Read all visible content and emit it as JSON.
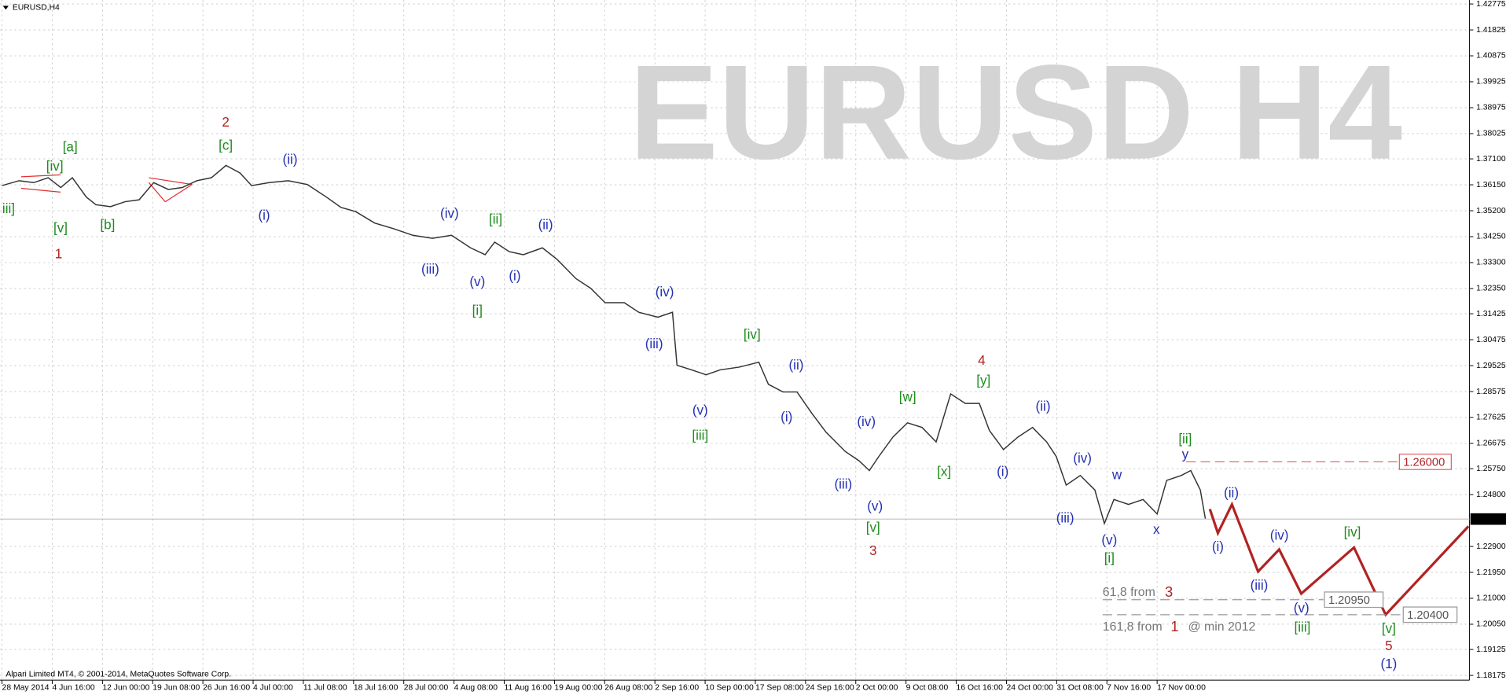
{
  "chart_data": {
    "type": "line",
    "title": "EURUSD,H4",
    "watermark": "EURUSD H4",
    "footer": "Alpari Limited MT4, © 2001-2014, MetaQuotes Software Corp.",
    "grid": true,
    "xlim": [
      -0.04,
      29.22
    ],
    "ylim": [
      1.18,
      1.4292
    ],
    "xticks": [
      {
        "value": 0,
        "label": "28 May 2014"
      },
      {
        "value": 1,
        "label": "4 Jun 16:00"
      },
      {
        "value": 2,
        "label": "12 Jun 00:00"
      },
      {
        "value": 3,
        "label": "19 Jun 08:00"
      },
      {
        "value": 4,
        "label": "26 Jun 16:00"
      },
      {
        "value": 5,
        "label": "4 Jul 00:00"
      },
      {
        "value": 6,
        "label": "11 Jul 08:00"
      },
      {
        "value": 7,
        "label": "18 Jul 16:00"
      },
      {
        "value": 8,
        "label": "28 Jul 00:00"
      },
      {
        "value": 9,
        "label": "4 Aug 08:00"
      },
      {
        "value": 10,
        "label": "11 Aug 16:00"
      },
      {
        "value": 11,
        "label": "19 Aug 00:00"
      },
      {
        "value": 12,
        "label": "26 Aug 08:00"
      },
      {
        "value": 13,
        "label": "2 Sep 16:00"
      },
      {
        "value": 14,
        "label": "10 Sep 00:00"
      },
      {
        "value": 15,
        "label": "17 Sep 08:00"
      },
      {
        "value": 16,
        "label": "24 Sep 16:00"
      },
      {
        "value": 17,
        "label": "2 Oct 00:00"
      },
      {
        "value": 18,
        "label": "9 Oct 08:00"
      },
      {
        "value": 19,
        "label": "16 Oct 16:00"
      },
      {
        "value": 20,
        "label": "24 Oct 00:00"
      },
      {
        "value": 21,
        "label": "31 Oct 08:00"
      },
      {
        "value": 22,
        "label": "7 Nov 16:00"
      },
      {
        "value": 23,
        "label": "17 Nov 00:00"
      }
    ],
    "yticks": [
      1.42775,
      1.41825,
      1.40875,
      1.39925,
      1.38975,
      1.38025,
      {
        "value": 1.371,
        "label": "1.37100"
      },
      {
        "value": 1.3615,
        "label": "1.36150"
      },
      {
        "value": 1.352,
        "label": "1.35200"
      },
      {
        "value": 1.3425,
        "label": "1.34250"
      },
      {
        "value": 1.333,
        "label": "1.33300"
      },
      {
        "value": 1.3235,
        "label": "1.32350"
      },
      1.31425,
      1.30475,
      1.29525,
      1.28575,
      1.27625,
      1.26675,
      {
        "value": 1.2575,
        "label": "1.25750"
      },
      {
        "value": 1.248,
        "label": "1.24800"
      },
      {
        "value": 1.229,
        "label": "1.22900"
      },
      {
        "value": 1.2195,
        "label": "1.21950"
      },
      {
        "value": 1.21,
        "label": "1.21000"
      },
      {
        "value": 1.2005,
        "label": "1.20050"
      },
      1.19125,
      1.18175
    ],
    "last_price": 1.23904,
    "series": [
      {
        "color": "#333333",
        "x": [
          0,
          0.34,
          0.63,
          0.92,
          1.17,
          1.4,
          1.68,
          1.87,
          2.16,
          2.45,
          2.73,
          3.02,
          3.31,
          3.59,
          3.88,
          4.17,
          4.46,
          4.74,
          4.97,
          5.32,
          5.7,
          6.08,
          6.46,
          6.75,
          7.04,
          7.42,
          7.8,
          8.18,
          8.57,
          8.95,
          9.33,
          9.62,
          9.81,
          10.1,
          10.38,
          10.76,
          11.05,
          11.43,
          11.72,
          12.01,
          12.39,
          12.68,
          13.06,
          13.35,
          13.44,
          13.73,
          14.02,
          14.3,
          14.68,
          15.07,
          15.26,
          15.55,
          15.83,
          16.12,
          16.41,
          16.79,
          17.07,
          17.27,
          17.46,
          17.74,
          18.03,
          18.32,
          18.6,
          18.89,
          19.18,
          19.46,
          19.66,
          19.94,
          20.23,
          20.52,
          20.8,
          20.99,
          21.19,
          21.47,
          21.76,
          21.95,
          22.14,
          22.43,
          22.72,
          23,
          23.19,
          23.48,
          23.67,
          23.86,
          23.96
        ],
        "values": [
          1.3612,
          1.363,
          1.3623,
          1.3641,
          1.3605,
          1.3641,
          1.357,
          1.3542,
          1.3535,
          1.3553,
          1.356,
          1.3623,
          1.3598,
          1.3605,
          1.363,
          1.3641,
          1.3686,
          1.3658,
          1.3612,
          1.3623,
          1.363,
          1.3616,
          1.357,
          1.3532,
          1.3517,
          1.3475,
          1.3454,
          1.343,
          1.3419,
          1.343,
          1.3384,
          1.3359,
          1.3405,
          1.337,
          1.3359,
          1.3384,
          1.3342,
          1.3271,
          1.3236,
          1.3183,
          1.3183,
          1.3148,
          1.313,
          1.3148,
          1.2954,
          1.2937,
          1.2919,
          1.2937,
          1.2947,
          1.2965,
          1.2884,
          1.2856,
          1.2856,
          1.2779,
          1.2708,
          1.2638,
          1.2603,
          1.2568,
          1.262,
          1.2691,
          1.2743,
          1.2726,
          1.2673,
          1.2849,
          1.2814,
          1.2814,
          1.2715,
          1.2645,
          1.2691,
          1.2726,
          1.2673,
          1.262,
          1.2515,
          1.255,
          1.2497,
          1.2374,
          1.2462,
          1.2444,
          1.2462,
          1.2409,
          1.2532,
          1.255,
          1.2568,
          1.2497,
          1.2392
        ]
      },
      {
        "color": "#b22222",
        "x": [
          24.05,
          24.21,
          24.49,
          25.01,
          25.43,
          25.87,
          26.92,
          27.55,
          29.2
        ],
        "values": [
          1.2427,
          1.2339,
          1.2444,
          1.2198,
          1.2279,
          1.2117,
          1.2286,
          1.204,
          1.2364
        ]
      }
    ],
    "levels": [
      {
        "value": 1.26,
        "label": "1.26000",
        "color": "#e06060"
      },
      {
        "value": 1.2095,
        "label": "1.20950",
        "color": "#999999"
      },
      {
        "value": 1.204,
        "label": "1.20400",
        "color": "#999999"
      }
    ],
    "level_notes": [
      {
        "text": "61,8 from",
        "wave": "3"
      },
      {
        "text": "161,8 from",
        "wave": "1",
        "note": "@ min 2012"
      }
    ],
    "annotations": [
      {
        "color": "#b22222",
        "labels": [
          "1",
          "2",
          "3",
          "4",
          "5"
        ]
      },
      {
        "color": "#1e8c1e",
        "labels": [
          "iii]",
          "[iv]",
          "[a]",
          "[v]",
          "[b]",
          "[c]",
          "[ii]",
          "[i]",
          "[iv]",
          "[iii]",
          "[w]",
          "[y]",
          "[x]",
          "[v]",
          "[i]",
          "[ii]",
          "[iii]",
          "[iv]",
          "[v]"
        ]
      },
      {
        "color": "#2430b4",
        "labels": [
          "(ii)",
          "(i)",
          "(iv)",
          "(iii)",
          "(v)",
          "(i)",
          "(ii)",
          "(iv)",
          "(iii)",
          "(v)",
          "(ii)",
          "(i)",
          "(iv)",
          "(iii)",
          "(v)",
          "(ii)",
          "(i)",
          "(iv)",
          "(iii)",
          "(v)",
          "w",
          "x",
          "y",
          "(i)",
          "(ii)",
          "(iii)",
          "(iv)",
          "(v)",
          "(1)"
        ]
      }
    ]
  }
}
